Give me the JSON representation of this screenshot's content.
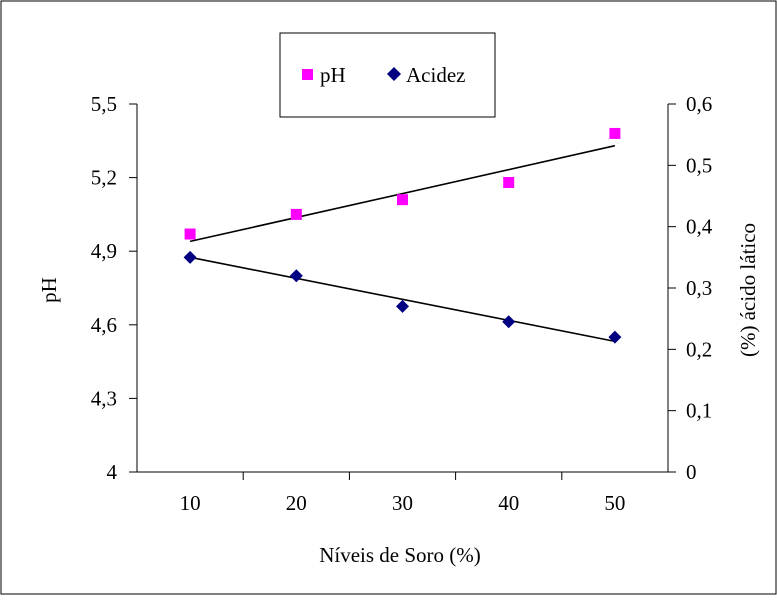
{
  "chart_data": {
    "type": "scatter",
    "title": "",
    "xlabel": "Níveis de Soro (%)",
    "ylabel_left": "pH",
    "ylabel_right": "(%) ácido lático",
    "x_categories": [
      "10",
      "20",
      "30",
      "40",
      "50"
    ],
    "y_left": {
      "range": [
        4,
        5.5
      ],
      "ticks": [
        4,
        4.3,
        4.6,
        4.9,
        5.2,
        5.5
      ],
      "tick_labels": [
        "4",
        "4,3",
        "4,6",
        "4,9",
        "5,2",
        "5,5"
      ]
    },
    "y_right": {
      "range": [
        0,
        0.6
      ],
      "ticks": [
        0,
        0.1,
        0.2,
        0.3,
        0.4,
        0.5,
        0.6
      ],
      "tick_labels": [
        "0",
        "0,1",
        "0,2",
        "0,3",
        "0,4",
        "0,5",
        "0,6"
      ]
    },
    "legend_placement": "top-center",
    "grid": false,
    "series": [
      {
        "name": "pH",
        "axis": "left",
        "marker": "square",
        "color": "#ff00ff",
        "x": [
          10,
          20,
          30,
          40,
          50
        ],
        "values": [
          4.97,
          5.05,
          5.11,
          5.18,
          5.38
        ],
        "trendline": {
          "from": [
            10,
            4.94
          ],
          "to": [
            50,
            5.33
          ]
        }
      },
      {
        "name": "Acidez",
        "axis": "right",
        "marker": "diamond",
        "color": "#000080",
        "x": [
          10,
          20,
          30,
          40,
          50
        ],
        "values": [
          0.35,
          0.32,
          0.27,
          0.245,
          0.22
        ],
        "trendline": {
          "from": [
            10,
            0.35
          ],
          "to": [
            50,
            0.213
          ]
        }
      }
    ]
  }
}
